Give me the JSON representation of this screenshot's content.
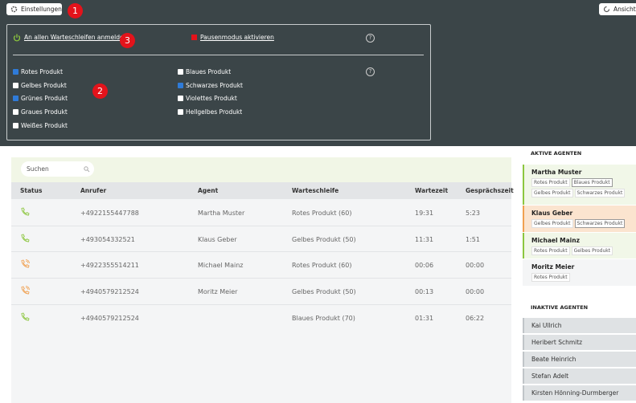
{
  "toolbar": {
    "settings_button": "Einstellungen",
    "view_button": "Ansicht ä"
  },
  "badges": [
    "1",
    "2",
    "3"
  ],
  "settings_panel": {
    "login_link": "An allen Warteschleifen anmelden",
    "pause_link": "Pausenmodus aktivieren",
    "help": "?",
    "queues": [
      {
        "label": "Rotes Produkt",
        "checked": true
      },
      {
        "label": "Gelbes Produkt",
        "checked": false
      },
      {
        "label": "Grünes Produkt",
        "checked": true
      },
      {
        "label": "Graues Produkt",
        "checked": false
      },
      {
        "label": "Weißes Produkt",
        "checked": false
      },
      {
        "label": "Blaues Produkt",
        "checked": false
      },
      {
        "label": "Schwarzes Produkt",
        "checked": true
      },
      {
        "label": "Violettes Produkt",
        "checked": false
      },
      {
        "label": "Hellgelbes Produkt",
        "checked": false
      }
    ]
  },
  "search_placeholder": "Suchen",
  "table": {
    "columns": [
      "Status",
      "Anrufer",
      "Agent",
      "Warteschleife",
      "Wartezeit",
      "Gesprächszeit"
    ],
    "rows": [
      {
        "ringing": false,
        "caller": "+4922155447788",
        "agent": "Martha Muster",
        "queue": "Rotes Produkt (60)",
        "wait": "19:31",
        "talk": "5:23"
      },
      {
        "ringing": false,
        "caller": "+493054332521",
        "agent": "Klaus Geber",
        "queue": "Gelbes Produkt (50)",
        "wait": "11:31",
        "talk": "1:51"
      },
      {
        "ringing": true,
        "caller": "+4922355514211",
        "agent": "Michael Mainz",
        "queue": "Rotes Produkt (60)",
        "wait": "00:06",
        "talk": "00:00"
      },
      {
        "ringing": true,
        "caller": "+4940579212524",
        "agent": "Moritz Meier",
        "queue": "Gelbes Produkt (50)",
        "wait": "00:13",
        "talk": "00:00"
      },
      {
        "ringing": false,
        "caller": "+4940579212524",
        "agent": null,
        "queue": "Blaues Produkt (70)",
        "wait": "01:31",
        "talk": "06:22"
      }
    ]
  },
  "active_agents": {
    "title": "AKTIVE AGENTEN",
    "agents": [
      {
        "name": "Martha Muster",
        "color": "#8cc63f",
        "background": "#f1f7e8",
        "queues": [
          {
            "label": "Rotes Produkt",
            "active": false
          },
          {
            "label": "Blaues Produkt",
            "active": true
          },
          {
            "label": "Gelbes Produkt",
            "active": false
          },
          {
            "label": "Schwarzes Produkt",
            "active": false
          }
        ]
      },
      {
        "name": "Klaus Geber",
        "color": "#f0a050",
        "background": "#fbe4cf",
        "queues": [
          {
            "label": "Gelbes Produkt",
            "active": false
          },
          {
            "label": "Schwarzes Produkt",
            "active": true
          }
        ]
      },
      {
        "name": "Michael Mainz",
        "color": "#8cc63f",
        "background": "#f1f7e8",
        "queues": [
          {
            "label": "Rotes Produkt",
            "active": false
          },
          {
            "label": "Gelbes Produkt",
            "active": false
          }
        ]
      },
      {
        "name": "Moritz Meier",
        "color": "#f4f5f6",
        "background": "#f4f5f6",
        "queues": [
          {
            "label": "Rotes Produkt",
            "active": false
          }
        ]
      }
    ]
  },
  "inactive_agents": {
    "title": "INAKTIVE AGENTEN",
    "agents": [
      "Kai Ullrich",
      "Heribert Schmitz",
      "Beate Heinrich",
      "Stefan Adelt",
      "Kirsten Hönning-Durmberger"
    ]
  }
}
